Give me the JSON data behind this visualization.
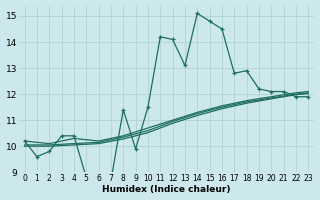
{
  "xlabel": "Humidex (Indice chaleur)",
  "bg_color": "#cce8ec",
  "grid_color": "#aacfd4",
  "line_color": "#1e6e5e",
  "xlim": [
    -0.5,
    23.5
  ],
  "ylim": [
    9,
    15.4
  ],
  "xticks": [
    0,
    1,
    2,
    3,
    4,
    5,
    6,
    7,
    8,
    9,
    10,
    11,
    12,
    13,
    14,
    15,
    16,
    17,
    18,
    19,
    20,
    21,
    22,
    23
  ],
  "yticks": [
    9,
    10,
    11,
    12,
    13,
    14,
    15
  ],
  "series": [
    {
      "x": [
        0,
        1,
        2,
        3,
        4,
        5,
        6,
        7,
        8,
        9,
        10,
        11,
        12,
        13,
        14,
        15,
        16,
        17,
        18,
        19,
        20,
        21,
        22,
        23
      ],
      "y": [
        10.2,
        9.6,
        9.8,
        10.4,
        10.4,
        8.8,
        8.8,
        8.7,
        11.4,
        9.9,
        11.5,
        14.2,
        14.1,
        13.1,
        15.1,
        14.8,
        14.5,
        12.8,
        12.9,
        12.2,
        12.1,
        12.1,
        11.9,
        11.9
      ],
      "marker": "+",
      "lw": 0.9
    },
    {
      "x": [
        0,
        2,
        4,
        6,
        8,
        10,
        12,
        14,
        16,
        18,
        20,
        22,
        23
      ],
      "y": [
        10.2,
        10.1,
        10.3,
        10.2,
        10.4,
        10.7,
        11.0,
        11.3,
        11.55,
        11.75,
        11.9,
        12.05,
        12.1
      ],
      "marker": null,
      "lw": 0.9
    },
    {
      "x": [
        0,
        2,
        4,
        6,
        8,
        10,
        12,
        14,
        16,
        18,
        20,
        22,
        23
      ],
      "y": [
        10.05,
        10.05,
        10.1,
        10.15,
        10.35,
        10.6,
        10.95,
        11.25,
        11.5,
        11.7,
        11.85,
        12.0,
        12.05
      ],
      "marker": null,
      "lw": 0.9
    },
    {
      "x": [
        0,
        2,
        4,
        6,
        8,
        10,
        12,
        14,
        16,
        18,
        20,
        22,
        23
      ],
      "y": [
        10.0,
        10.0,
        10.05,
        10.1,
        10.28,
        10.52,
        10.88,
        11.18,
        11.44,
        11.65,
        11.82,
        11.98,
        12.02
      ],
      "marker": null,
      "lw": 0.9
    }
  ]
}
